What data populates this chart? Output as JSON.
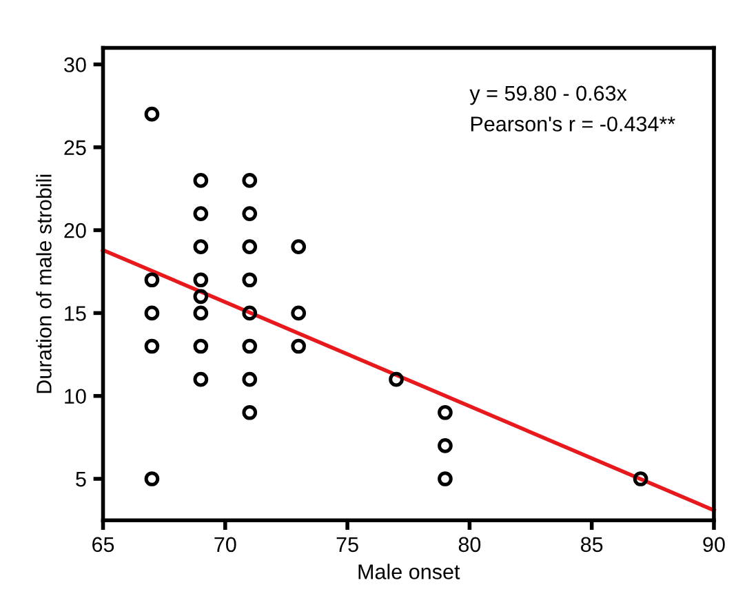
{
  "chart_data": {
    "type": "scatter",
    "xlabel": "Male onset",
    "ylabel": "Duration of male strobili",
    "annotations": [
      "y = 59.80 - 0.63x",
      "Pearson's r = -0.434**"
    ],
    "xlim": [
      65,
      90
    ],
    "xticks": [
      65,
      70,
      75,
      80,
      85,
      90
    ],
    "ylim": [
      2.5,
      31
    ],
    "yticks": [
      5,
      10,
      15,
      20,
      25,
      30
    ],
    "grid": false,
    "series": [
      {
        "color": "#000000",
        "marker": "circle",
        "x": [
          67,
          67,
          67,
          67,
          67,
          69,
          69,
          69,
          69,
          69,
          69,
          69,
          69,
          71,
          71,
          71,
          71,
          71,
          71,
          71,
          71,
          73,
          73,
          73,
          77,
          79,
          79,
          79,
          87
        ],
        "values": [
          27,
          17,
          15,
          13,
          5,
          23,
          21,
          19,
          17,
          16,
          15,
          13,
          11,
          23,
          21,
          19,
          17,
          15,
          13,
          11,
          9,
          19,
          15,
          13,
          11,
          9,
          7,
          5,
          5
        ]
      },
      {
        "type": "line",
        "color": "#e8191c",
        "marker": "none",
        "x": [
          65,
          90
        ],
        "values": [
          18.8,
          3.1
        ]
      }
    ]
  }
}
